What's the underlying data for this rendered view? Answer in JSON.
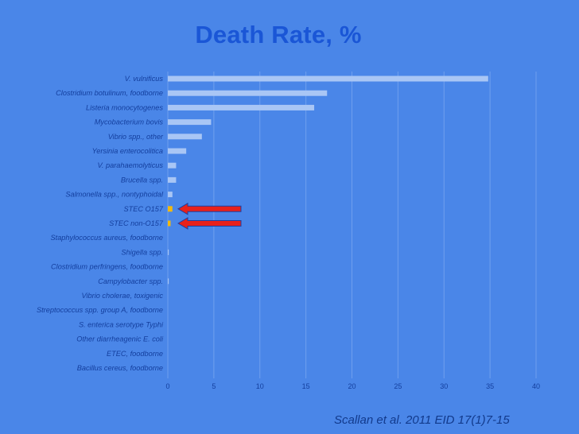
{
  "chart_data": {
    "type": "bar",
    "orientation": "horizontal",
    "title": "Death Rate, %",
    "categories": [
      "V. vulnificus",
      "Clostridium botulinum, foodborne",
      "Listeria monocytogenes",
      "Mycobacterium bovis",
      "Vibrio spp., other",
      "Yersinia enterocolitica",
      "V. parahaemolyticus",
      "Brucella spp.",
      "Salmonella spp., nontyphoidal",
      "STEC O157",
      "STEC non-O157",
      "Staphylococcus aureus, foodborne",
      "Shigella spp.",
      "Clostridium perfringens, foodborne",
      "Campylobacter spp.",
      "Vibrio cholerae, toxigenic",
      "Streptococcus spp. group A, foodborne",
      "S. enterica serotype Typhi",
      "Other diarrheagenic E. coli",
      "ETEC, foodborne",
      "Bacillus cereus, foodborne"
    ],
    "values": [
      34.8,
      17.3,
      15.9,
      4.7,
      3.7,
      2.0,
      0.9,
      0.9,
      0.5,
      0.5,
      0.3,
      0.0,
      0.1,
      0.0,
      0.1,
      0.0,
      0.0,
      0.0,
      0.0,
      0.0,
      0.0
    ],
    "highlighted": [
      "STEC O157",
      "STEC non-O157"
    ],
    "xlim": [
      0,
      40
    ],
    "xticks": [
      0,
      5,
      10,
      15,
      20,
      25,
      30,
      35,
      40
    ],
    "grid": true,
    "colors": {
      "background": "#4a86e8",
      "bar": "#a9c6f5",
      "highlight_bar": "#f2b90f",
      "arrow_fill": "#e8211b",
      "arrow_stroke": "#1f3f9e",
      "gridline": "#6f9fee"
    },
    "citation": "Scallan et al. 2011 EID 17(1)7-15"
  }
}
